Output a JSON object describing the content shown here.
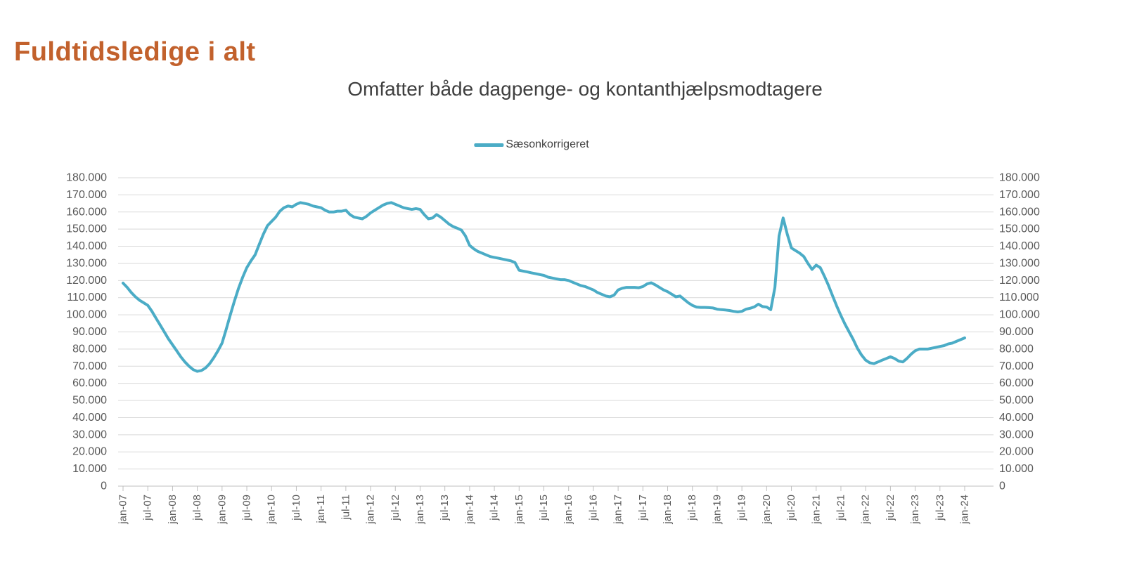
{
  "page": {
    "title": "Fuldtidsledige i alt"
  },
  "colors": {
    "title": "#c2612c",
    "subtitle_text": "#3f3f3f",
    "legend_text": "#404040",
    "axis_text": "#595959",
    "gridline": "#d9d9d9",
    "axis_line": "#bfbfbf",
    "line": "#4bacc6"
  },
  "chart_data": {
    "type": "line",
    "title": "Fuldtidsledige i alt",
    "subtitle": "Omfatter både dagpenge- og kontanthjælpsmodtagere",
    "legend_position": "top-center",
    "grid": true,
    "x_unit": "month",
    "x_range": [
      "jan-07",
      "jan-24"
    ],
    "x_tick_every_months": 6,
    "x_tick_labels": [
      "jan-07",
      "jul-07",
      "jan-08",
      "jul-08",
      "jan-09",
      "jul-09",
      "jan-10",
      "jul-10",
      "jan-11",
      "jul-11",
      "jan-12",
      "jul-12",
      "jan-13",
      "jul-13",
      "jan-14",
      "jul-14",
      "jan-15",
      "jul-15",
      "jan-16",
      "jul-16",
      "jan-17",
      "jul-17",
      "jan-18",
      "jul-18",
      "jan-19",
      "jul-19",
      "jan-20",
      "jul-20",
      "jan-21",
      "jul-21",
      "jan-22",
      "jul-22",
      "jan-23",
      "jul-23",
      "jan-24"
    ],
    "ylim": [
      0,
      180000
    ],
    "y_tick_step": 10000,
    "y_tick_labels": [
      "0",
      "10.000",
      "20.000",
      "30.000",
      "40.000",
      "50.000",
      "60.000",
      "70.000",
      "80.000",
      "90.000",
      "100.000",
      "110.000",
      "120.000",
      "130.000",
      "140.000",
      "150.000",
      "160.000",
      "170.000",
      "180.000"
    ],
    "y_axis_sides": [
      "left",
      "right"
    ],
    "series": [
      {
        "name": "Sæsonkorrigeret",
        "color": "#4bacc6",
        "start": "jan-07",
        "values": [
          118500,
          116000,
          113000,
          110500,
          108500,
          107000,
          105500,
          102000,
          98000,
          94000,
          90000,
          86000,
          82500,
          79000,
          75500,
          72500,
          70000,
          68000,
          67000,
          67500,
          69000,
          71500,
          75000,
          79000,
          83500,
          91500,
          100000,
          108000,
          115500,
          122000,
          127500,
          131500,
          135000,
          141000,
          147000,
          152000,
          154500,
          157000,
          160500,
          162500,
          163500,
          163000,
          164500,
          165500,
          165000,
          164500,
          163500,
          163000,
          162500,
          161000,
          160000,
          160000,
          160500,
          160500,
          161000,
          158500,
          157000,
          156500,
          156000,
          157500,
          159500,
          161000,
          162500,
          164000,
          165000,
          165500,
          164500,
          163500,
          162500,
          162000,
          161500,
          162000,
          161500,
          158500,
          156000,
          156500,
          158500,
          157000,
          155000,
          153000,
          151500,
          150500,
          149500,
          146000,
          140500,
          138500,
          137000,
          136000,
          135000,
          134000,
          133500,
          133000,
          132500,
          132000,
          131500,
          130500,
          126000,
          125500,
          125000,
          124500,
          124000,
          123500,
          123000,
          122000,
          121500,
          121000,
          120500,
          120500,
          120000,
          119000,
          118000,
          117000,
          116500,
          115500,
          114500,
          113000,
          112000,
          111000,
          110500,
          111500,
          114500,
          115500,
          116000,
          116000,
          116000,
          115800,
          116500,
          118000,
          118700,
          117500,
          116000,
          114500,
          113500,
          112000,
          110500,
          111000,
          109000,
          107000,
          105500,
          104500,
          104300,
          104300,
          104200,
          104000,
          103300,
          103000,
          102800,
          102500,
          102000,
          101700,
          102000,
          103300,
          103800,
          104600,
          106200,
          104800,
          104500,
          103000,
          116000,
          146000,
          156500,
          147000,
          139000,
          137500,
          136000,
          134000,
          130000,
          126500,
          129000,
          127500,
          122500,
          117000,
          111000,
          105000,
          99500,
          94500,
          90000,
          85500,
          80500,
          76500,
          73500,
          72000,
          71500,
          72500,
          73500,
          74500,
          75500,
          74500,
          73000,
          72500,
          74500,
          77000,
          79000,
          80000,
          80000,
          80000,
          80500,
          81000,
          81500,
          82000,
          83000,
          83500,
          84500,
          85500,
          86500
        ]
      }
    ]
  }
}
